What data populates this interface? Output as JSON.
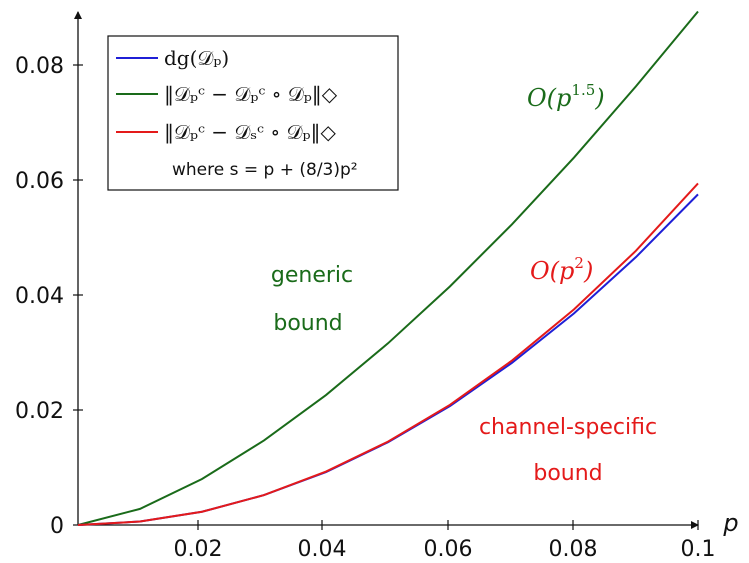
{
  "chart_data": {
    "type": "line",
    "xlabel": "p",
    "ylabel": "",
    "xlim": [
      0,
      0.1
    ],
    "ylim": [
      0,
      0.09
    ],
    "x_ticks": [
      "0.02",
      "0.04",
      "0.06",
      "0.08",
      "0.1"
    ],
    "x_tick_values": [
      0.02,
      0.04,
      0.06,
      0.08,
      0.1
    ],
    "y_ticks": [
      "0",
      "0.02",
      "0.04",
      "0.06",
      "0.08"
    ],
    "y_tick_values": [
      0,
      0.02,
      0.04,
      0.06,
      0.08
    ],
    "grid": false,
    "legend_position": "top-left",
    "x": [
      0,
      0.01,
      0.02,
      0.03,
      0.04,
      0.05,
      0.06,
      0.07,
      0.08,
      0.09,
      0.1
    ],
    "series": [
      {
        "name": "dg(𝒟ₚ)",
        "color": "#1f1fd6",
        "values": [
          0,
          0.0006,
          0.0023,
          0.0052,
          0.0092,
          0.0144,
          0.0207,
          0.0282,
          0.0368,
          0.0466,
          0.0575
        ]
      },
      {
        "name": "‖𝒟ₚᶜ − 𝒟ₚᶜ ∘ 𝒟ₚ‖◇",
        "color": "#1a6b1a",
        "values": [
          0,
          0.0028,
          0.008,
          0.0147,
          0.0226,
          0.0316,
          0.0415,
          0.0523,
          0.0639,
          0.0763,
          0.0893
        ]
      },
      {
        "name": "‖𝒟ₚᶜ − 𝒟ₛᶜ ∘ 𝒟ₚ‖◇",
        "color": "#e41a1a",
        "values": [
          0,
          0.0006,
          0.0023,
          0.0052,
          0.0093,
          0.0145,
          0.0209,
          0.0286,
          0.0375,
          0.0477,
          0.0594
        ]
      }
    ],
    "legend_note": "where s = p + (8/3)p²",
    "annotations": {
      "generic_line1": "generic",
      "generic_line2": "bound",
      "specific_line1": "channel-specific",
      "specific_line2": "bound",
      "green_growth_base": "O(p",
      "green_growth_exp": "1.5",
      "green_growth_close": ")",
      "red_growth_base": "O(p",
      "red_growth_exp": "2",
      "red_growth_close": ")"
    }
  }
}
